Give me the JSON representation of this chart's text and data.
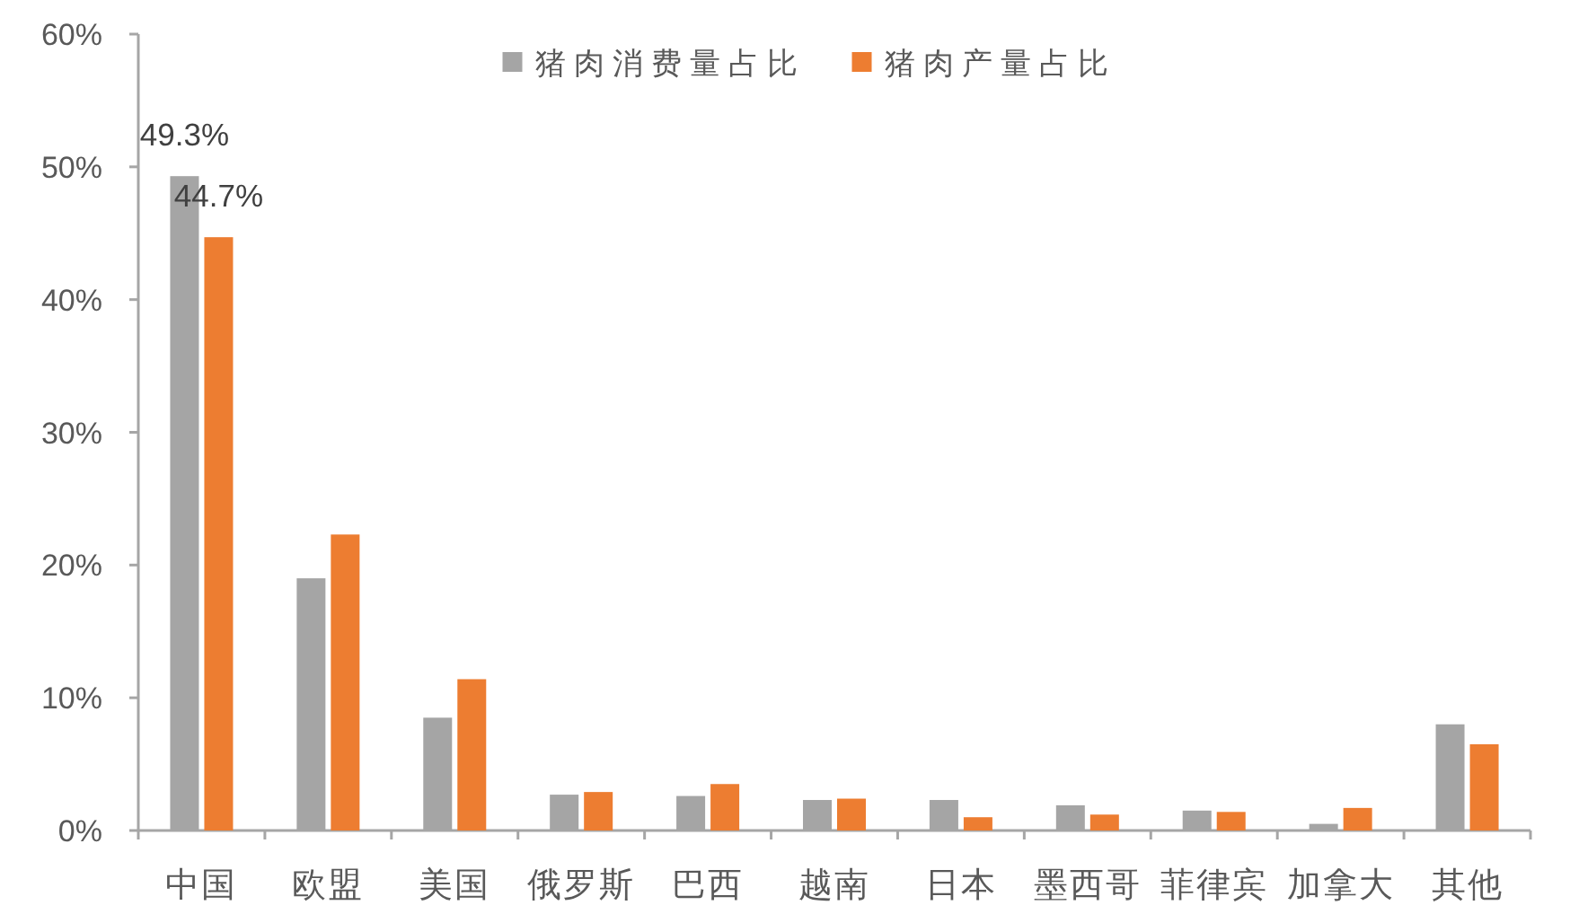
{
  "chart_data": {
    "type": "bar",
    "categories": [
      "中国",
      "欧盟",
      "美国",
      "俄罗斯",
      "巴西",
      "越南",
      "日本",
      "墨西哥",
      "菲律宾",
      "加拿大",
      "其他"
    ],
    "series": [
      {
        "name": "猪肉消费量占比",
        "color": "#a5a5a5",
        "values": [
          49.3,
          19.0,
          8.5,
          2.7,
          2.6,
          2.3,
          2.3,
          1.9,
          1.5,
          0.5,
          8.0
        ],
        "value_labels": [
          "49.3%",
          null,
          null,
          null,
          null,
          null,
          null,
          null,
          null,
          null,
          null
        ]
      },
      {
        "name": "猪肉产量占比",
        "color": "#ed7d31",
        "values": [
          44.7,
          22.3,
          11.4,
          2.9,
          3.5,
          2.4,
          1.0,
          1.2,
          1.4,
          1.7,
          6.5
        ],
        "value_labels": [
          "44.7%",
          null,
          null,
          null,
          null,
          null,
          null,
          null,
          null,
          null,
          null
        ]
      }
    ],
    "ylim": [
      0,
      60
    ],
    "yticks": [
      {
        "value": 0,
        "label": "0%"
      },
      {
        "value": 10,
        "label": "10%"
      },
      {
        "value": 20,
        "label": "20%"
      },
      {
        "value": 30,
        "label": "30%"
      },
      {
        "value": 40,
        "label": "40%"
      },
      {
        "value": 50,
        "label": "50%"
      },
      {
        "value": 60,
        "label": "60%"
      }
    ],
    "grid": false,
    "legend": "top"
  }
}
